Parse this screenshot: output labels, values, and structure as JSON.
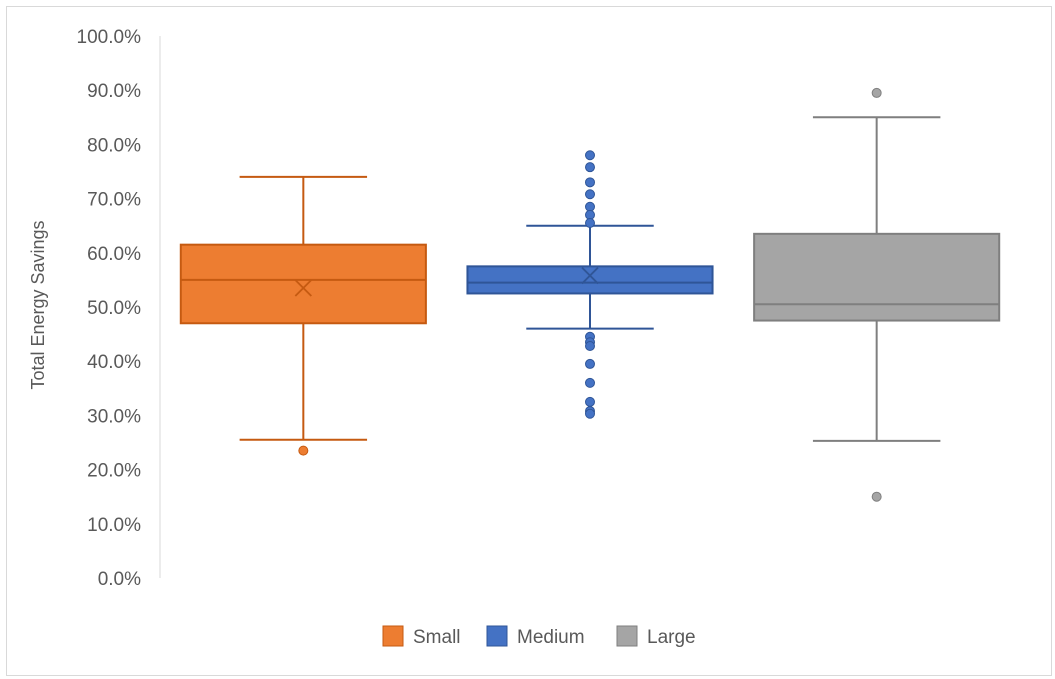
{
  "chart_data": {
    "type": "box",
    "title": "",
    "xlabel": "",
    "ylabel": "Total Energy Savings",
    "ylim": [
      0,
      100
    ],
    "y_tick_labels": [
      "0.0%",
      "10.0%",
      "20.0%",
      "30.0%",
      "40.0%",
      "50.0%",
      "60.0%",
      "70.0%",
      "80.0%",
      "90.0%",
      "100.0%"
    ],
    "grid": false,
    "legend_position": "bottom",
    "series": [
      {
        "name": "Small",
        "color": "#ed7d31",
        "stroke": "#c55a11",
        "whisker_low": 25.5,
        "q1": 47.0,
        "median": 55.0,
        "mean": 53.5,
        "q3": 61.5,
        "whisker_high": 74.0,
        "outliers": [
          23.5
        ]
      },
      {
        "name": "Medium",
        "color": "#4472c4",
        "stroke": "#2f5597",
        "whisker_low": 46.0,
        "q1": 52.5,
        "median": 54.5,
        "mean": 55.8,
        "q3": 57.5,
        "whisker_high": 65.0,
        "outliers": [
          78.0,
          75.8,
          73.0,
          70.8,
          68.5,
          67.0,
          65.5,
          44.5,
          43.5,
          42.8,
          39.5,
          36.0,
          32.5,
          30.8,
          30.3
        ]
      },
      {
        "name": "Large",
        "color": "#a5a5a5",
        "stroke": "#7f7f7f",
        "whisker_low": 25.3,
        "q1": 47.5,
        "median": 50.5,
        "mean": null,
        "q3": 63.5,
        "whisker_high": 85.0,
        "outliers": [
          89.5,
          15.0
        ]
      }
    ]
  }
}
